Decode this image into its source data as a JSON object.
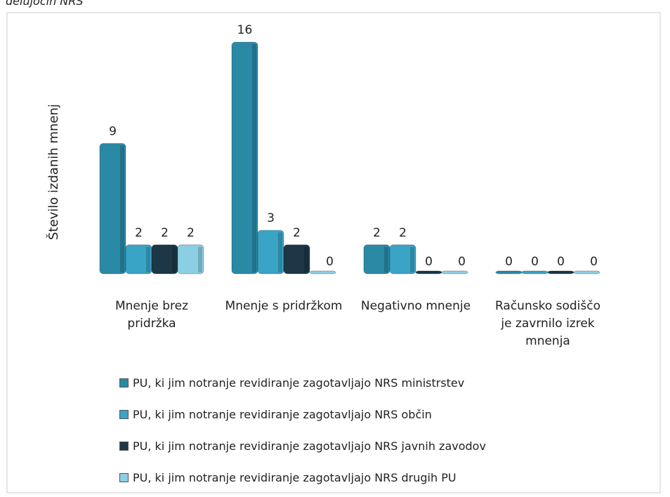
{
  "caption": "delujočih NRS",
  "chart_data": {
    "type": "bar",
    "y_label": "Število izdanih mnenj",
    "categories": [
      "Mnenje brez pridržka",
      "Mnenje s pridržkom",
      "Negativno mnenje",
      "Računsko sodiščo je zavrnilo izrek mnenja"
    ],
    "series": [
      {
        "name": "PU, ki jim notranje revidiranje zagotavljajo NRS ministrstev",
        "color": "#2a8aa6",
        "values": [
          9,
          16,
          2,
          0
        ]
      },
      {
        "name": "PU, ki jim notranje revidiranje zagotavljajo NRS občin",
        "color": "#3aa4c6",
        "values": [
          2,
          3,
          2,
          0
        ]
      },
      {
        "name": "PU, ki jim notranje revidiranje zagotavljajo NRS javnih zavodov",
        "color": "#1d3746",
        "values": [
          2,
          2,
          0,
          0
        ]
      },
      {
        "name": "PU, ki jim notranje revidiranje zagotavljajo NRS drugih PU",
        "color": "#8ccfe4",
        "values": [
          2,
          0,
          0,
          0
        ]
      }
    ],
    "legend": "bottom"
  }
}
